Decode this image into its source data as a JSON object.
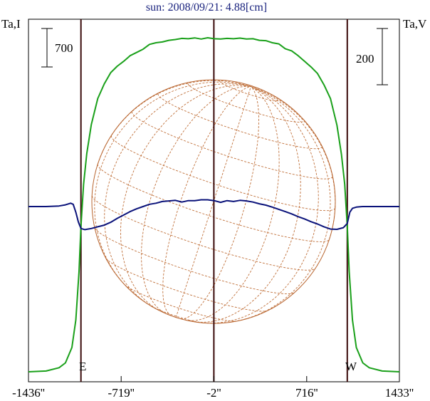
{
  "chart_data": {
    "type": "line",
    "title": "sun: 2008/09/21: 4.88[cm]",
    "left_axis_label": "Ta,I",
    "right_axis_label": "Ta,V",
    "scale_bar_left": "700",
    "scale_bar_right": "200",
    "limb_labels": {
      "east": "E",
      "west": "W"
    },
    "xlim": [
      -1436,
      1433
    ],
    "x_ticks": [
      {
        "value": -1436,
        "label": "-1436''"
      },
      {
        "value": -719,
        "label": "-719''"
      },
      {
        "value": -2,
        "label": "-2''"
      },
      {
        "value": 716,
        "label": "716''"
      },
      {
        "value": 1433,
        "label": "1433''"
      }
    ],
    "vertical_markers": [
      -1030,
      -2,
      1030
    ],
    "solar_disk": {
      "radius_arcsec": 955,
      "grid": "heliographic"
    },
    "series": [
      {
        "name": "Ta,I",
        "color": "#1aa01a",
        "x": [
          -1436,
          -1300,
          -1200,
          -1150,
          -1100,
          -1070,
          -1045,
          -1030,
          -1010,
          -985,
          -950,
          -900,
          -850,
          -800,
          -750,
          -700,
          -650,
          -600,
          -550,
          -500,
          -450,
          -400,
          -350,
          -300,
          -250,
          -200,
          -150,
          -100,
          -50,
          0,
          50,
          100,
          150,
          200,
          250,
          300,
          350,
          400,
          450,
          500,
          550,
          600,
          650,
          700,
          750,
          800,
          850,
          900,
          950,
          985,
          1010,
          1030,
          1045,
          1070,
          1100,
          1150,
          1200,
          1300,
          1433
        ],
        "values": [
          0,
          5,
          25,
          55,
          150,
          320,
          620,
          900,
          1160,
          1350,
          1530,
          1690,
          1780,
          1850,
          1890,
          1920,
          1955,
          1975,
          1995,
          2025,
          2035,
          2040,
          2050,
          2055,
          2062,
          2060,
          2065,
          2058,
          2066,
          2060,
          2058,
          2062,
          2060,
          2064,
          2058,
          2060,
          2050,
          2048,
          2035,
          2028,
          1998,
          1985,
          1955,
          1920,
          1885,
          1845,
          1775,
          1690,
          1525,
          1345,
          1160,
          900,
          620,
          320,
          150,
          55,
          25,
          5,
          0
        ]
      },
      {
        "name": "Ta,V",
        "color": "#0a127a",
        "x": [
          -1436,
          -1300,
          -1200,
          -1150,
          -1110,
          -1090,
          -1070,
          -1050,
          -1030,
          -1000,
          -950,
          -900,
          -850,
          -800,
          -750,
          -700,
          -650,
          -600,
          -550,
          -500,
          -450,
          -400,
          -350,
          -300,
          -250,
          -200,
          -150,
          -100,
          -50,
          0,
          50,
          100,
          150,
          200,
          250,
          300,
          350,
          400,
          450,
          500,
          550,
          600,
          650,
          700,
          750,
          800,
          850,
          900,
          950,
          1000,
          1030,
          1050,
          1070,
          1100,
          1150,
          1200,
          1300,
          1433
        ],
        "values": [
          0,
          0,
          2,
          6,
          12,
          8,
          -20,
          -55,
          -78,
          -82,
          -78,
          -72,
          -66,
          -56,
          -42,
          -30,
          -18,
          -8,
          0,
          8,
          12,
          18,
          20,
          22,
          16,
          21,
          21,
          24,
          24,
          21,
          15,
          21,
          18,
          22,
          20,
          16,
          10,
          5,
          -2,
          -10,
          -18,
          -26,
          -36,
          -44,
          -54,
          -62,
          -72,
          -80,
          -81,
          -75,
          -60,
          -20,
          -6,
          -2,
          0,
          0,
          0,
          0
        ]
      }
    ]
  }
}
